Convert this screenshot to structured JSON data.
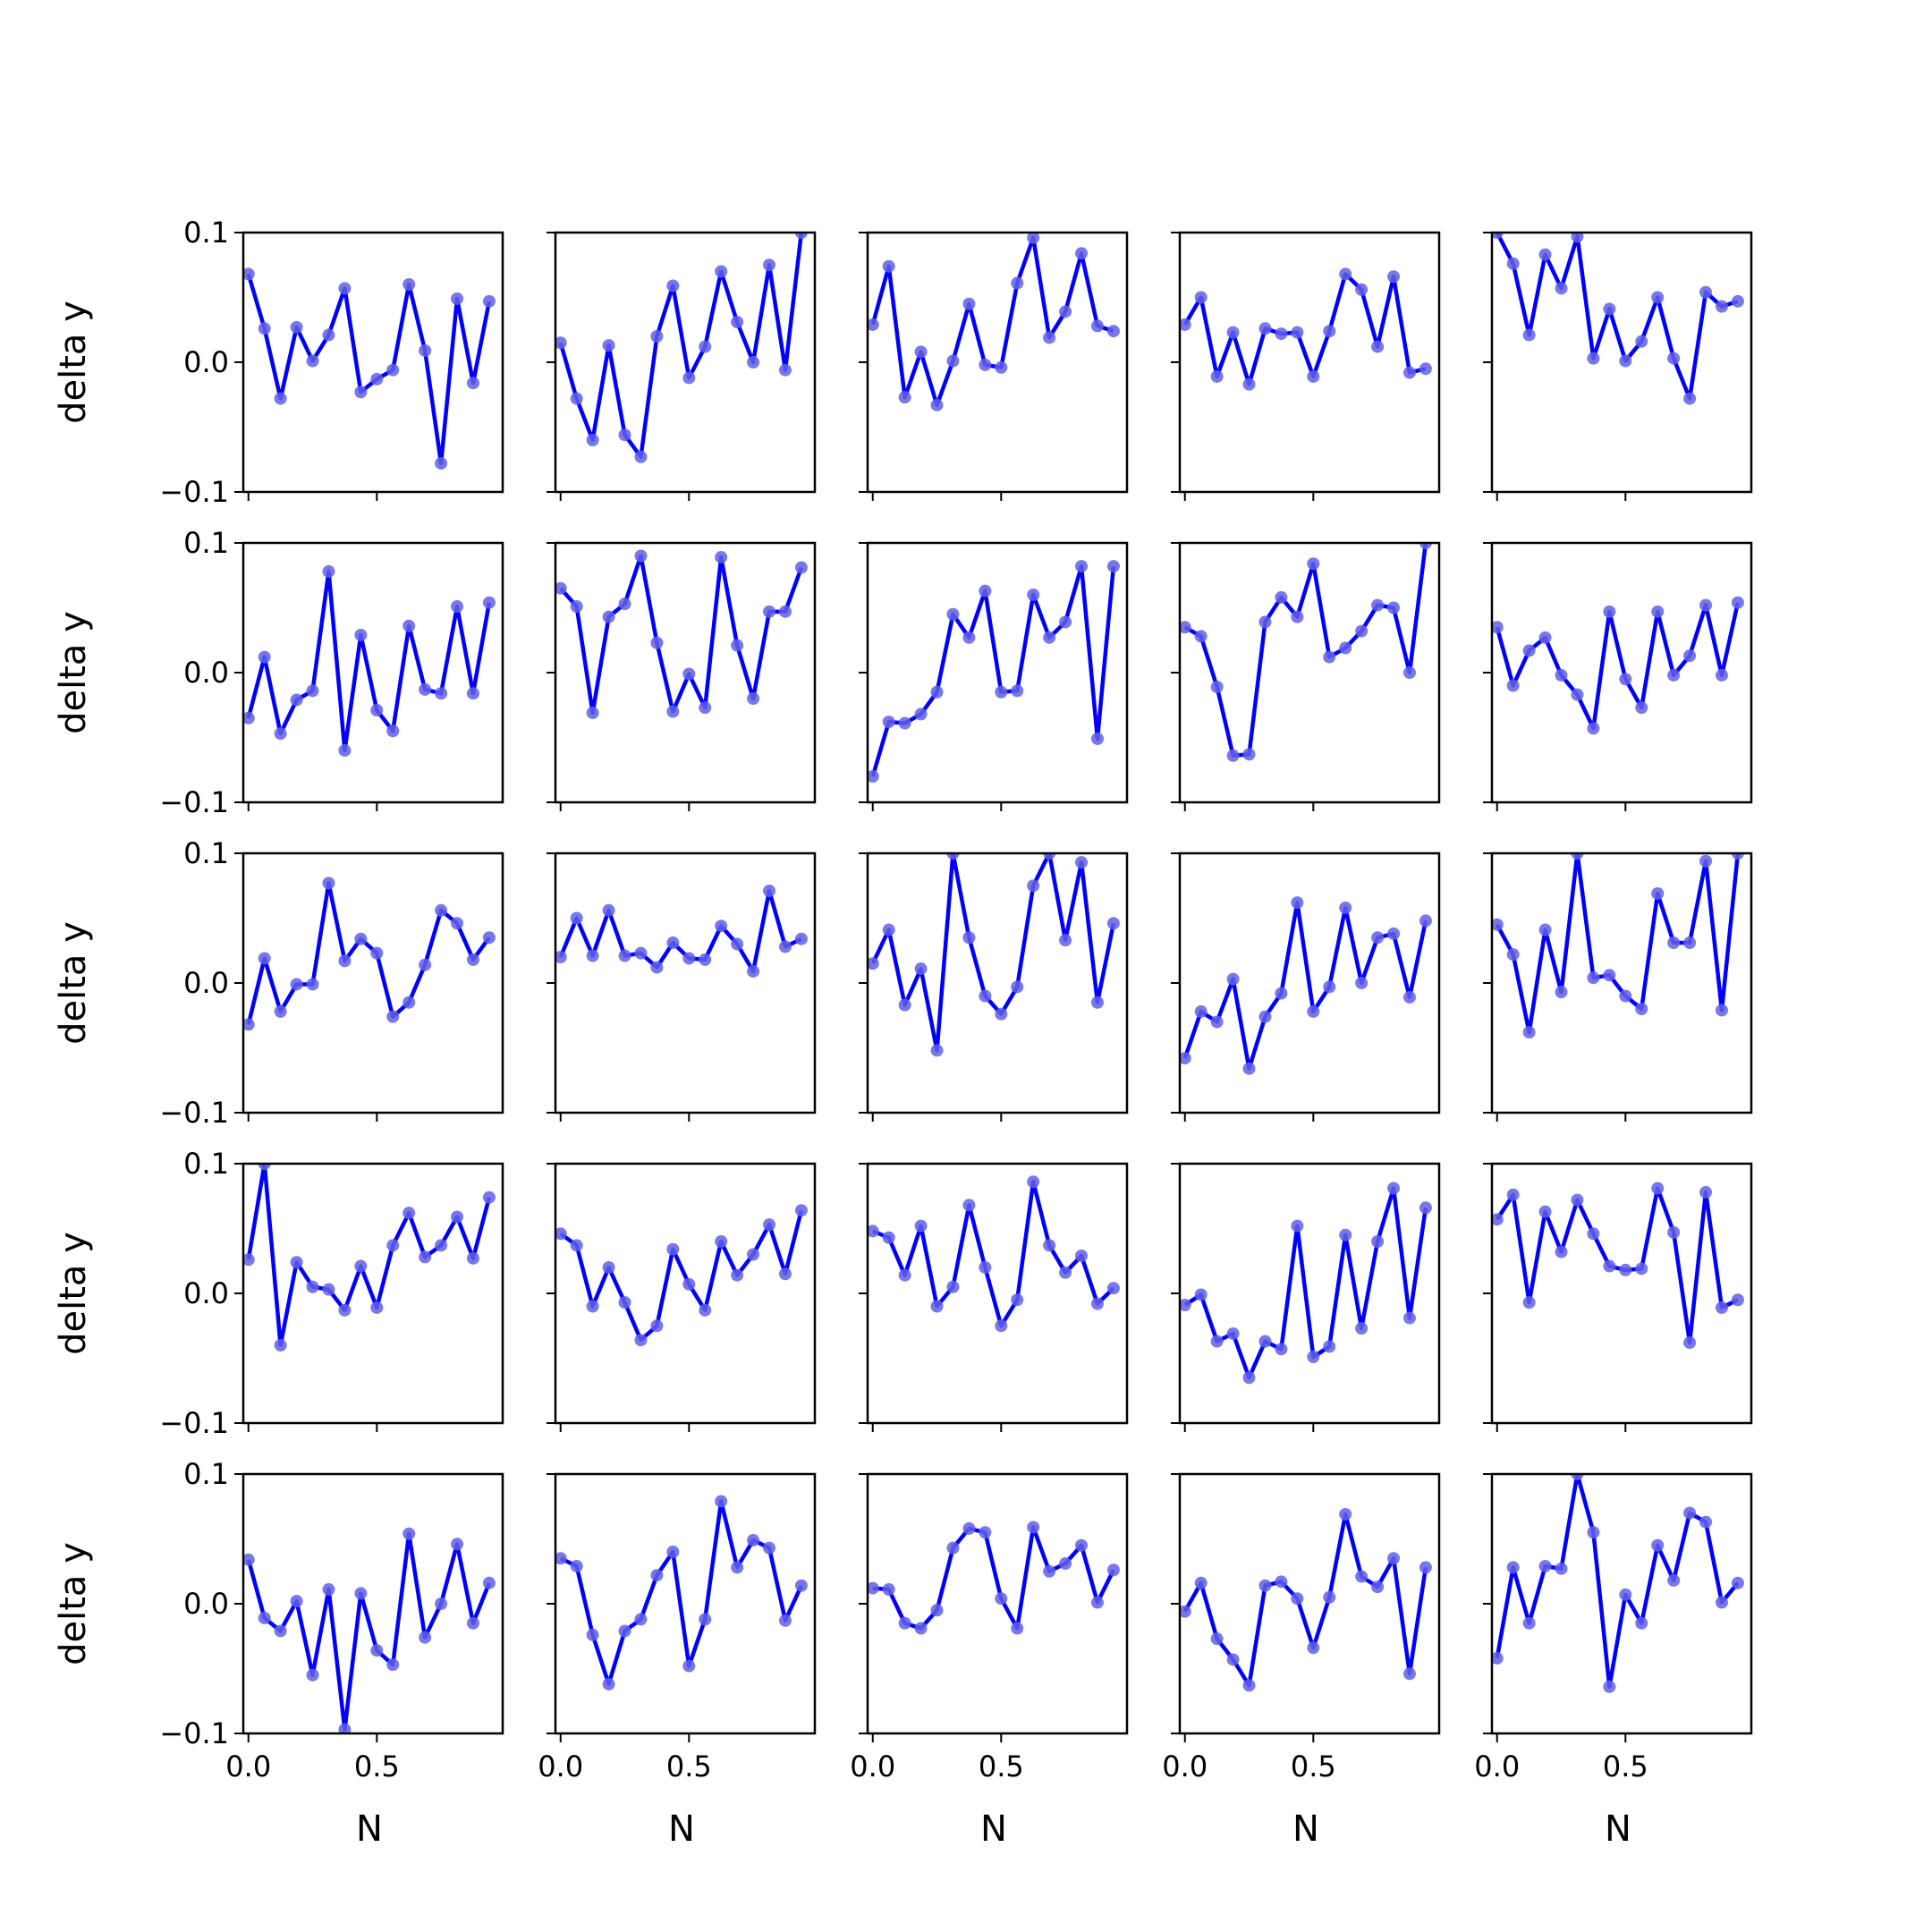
{
  "chart_data": {
    "type": "line",
    "layout": "5x5 grid of small-multiple line plots with markers",
    "xlabel": "N",
    "ylabel": "delta y",
    "xlim": [
      -0.02,
      0.99
    ],
    "ylim": [
      -0.1,
      0.1
    ],
    "x_ticks": [
      0.0,
      0.5
    ],
    "x_tick_labels": [
      "0.0",
      "0.5"
    ],
    "y_ticks": [
      -0.1,
      0.0,
      0.1
    ],
    "y_tick_labels": [
      "−0.1",
      "0.0",
      "0.1"
    ],
    "x": [
      0.0,
      0.0625,
      0.125,
      0.1875,
      0.25,
      0.3125,
      0.375,
      0.4375,
      0.5,
      0.5625,
      0.625,
      0.6875,
      0.75,
      0.8125,
      0.875,
      0.9375
    ],
    "line_color": "#0000ff",
    "marker_color": "#6060e8",
    "grid": false,
    "panels": [
      [
        0.068,
        0.026,
        -0.028,
        0.027,
        0.001,
        0.021,
        0.057,
        -0.023,
        -0.013,
        -0.006,
        0.06,
        0.009,
        -0.078,
        0.049,
        -0.016,
        0.047
      ],
      [
        0.015,
        -0.028,
        -0.06,
        0.013,
        -0.056,
        -0.073,
        0.02,
        0.059,
        -0.012,
        0.012,
        0.07,
        0.031,
        0.0,
        0.075,
        -0.006,
        0.1
      ],
      [
        0.029,
        0.074,
        -0.027,
        0.008,
        -0.033,
        0.001,
        0.045,
        -0.002,
        -0.004,
        0.061,
        0.096,
        0.019,
        0.039,
        0.084,
        0.028,
        0.024
      ],
      [
        0.029,
        0.05,
        -0.011,
        0.023,
        -0.017,
        0.026,
        0.022,
        0.023,
        -0.011,
        0.024,
        0.068,
        0.056,
        0.012,
        0.066,
        -0.008,
        -0.005
      ],
      [
        0.1,
        0.076,
        0.021,
        0.083,
        0.057,
        0.097,
        0.003,
        0.041,
        0.001,
        0.016,
        0.05,
        0.003,
        -0.028,
        0.054,
        0.043,
        0.047
      ],
      [
        -0.035,
        0.012,
        -0.047,
        -0.021,
        -0.014,
        0.078,
        -0.06,
        0.029,
        -0.029,
        -0.045,
        0.036,
        -0.013,
        -0.016,
        0.051,
        -0.016,
        0.054
      ],
      [
        0.065,
        0.051,
        -0.031,
        0.043,
        0.053,
        0.09,
        0.023,
        -0.03,
        -0.001,
        -0.027,
        0.089,
        0.021,
        -0.02,
        0.047,
        0.047,
        0.081
      ],
      [
        -0.08,
        -0.038,
        -0.039,
        -0.032,
        -0.015,
        0.045,
        0.027,
        0.063,
        -0.015,
        -0.014,
        0.06,
        0.027,
        0.039,
        0.082,
        -0.051,
        0.082
      ],
      [
        0.035,
        0.028,
        -0.011,
        -0.064,
        -0.063,
        0.039,
        0.058,
        0.043,
        0.084,
        0.012,
        0.019,
        0.032,
        0.052,
        0.05,
        0.0,
        0.1
      ],
      [
        0.035,
        -0.01,
        0.017,
        0.027,
        -0.002,
        -0.017,
        -0.043,
        0.047,
        -0.005,
        -0.027,
        0.047,
        -0.002,
        0.013,
        0.052,
        -0.002,
        0.054
      ],
      [
        -0.032,
        0.019,
        -0.022,
        -0.001,
        -0.001,
        0.077,
        0.017,
        0.034,
        0.023,
        -0.026,
        -0.015,
        0.014,
        0.056,
        0.046,
        0.018,
        0.035
      ],
      [
        0.02,
        0.05,
        0.021,
        0.056,
        0.021,
        0.023,
        0.012,
        0.031,
        0.019,
        0.018,
        0.044,
        0.03,
        0.009,
        0.071,
        0.028,
        0.034
      ],
      [
        0.015,
        0.041,
        -0.017,
        0.011,
        -0.052,
        0.1,
        0.035,
        -0.01,
        -0.024,
        -0.003,
        0.075,
        0.1,
        0.033,
        0.093,
        -0.015,
        0.046
      ],
      [
        -0.058,
        -0.022,
        -0.03,
        0.003,
        -0.066,
        -0.026,
        -0.008,
        0.062,
        -0.022,
        -0.003,
        0.058,
        0.0,
        0.035,
        0.038,
        -0.011,
        0.048
      ],
      [
        0.045,
        0.022,
        -0.038,
        0.041,
        -0.007,
        0.1,
        0.004,
        0.006,
        -0.01,
        -0.02,
        0.069,
        0.031,
        0.031,
        0.094,
        -0.021,
        0.1
      ],
      [
        0.026,
        0.1,
        -0.04,
        0.024,
        0.005,
        0.003,
        -0.013,
        0.021,
        -0.011,
        0.037,
        0.062,
        0.028,
        0.037,
        0.059,
        0.027,
        0.074
      ],
      [
        0.046,
        0.037,
        -0.01,
        0.02,
        -0.007,
        -0.036,
        -0.025,
        0.034,
        0.007,
        -0.013,
        0.04,
        0.014,
        0.03,
        0.053,
        0.015,
        0.064
      ],
      [
        0.048,
        0.043,
        0.014,
        0.052,
        -0.01,
        0.005,
        0.068,
        0.02,
        -0.025,
        -0.005,
        0.086,
        0.037,
        0.016,
        0.029,
        -0.008,
        0.004
      ],
      [
        -0.009,
        -0.001,
        -0.037,
        -0.031,
        -0.065,
        -0.037,
        -0.043,
        0.052,
        -0.049,
        -0.041,
        0.045,
        -0.027,
        0.04,
        0.081,
        -0.019,
        0.066
      ],
      [
        0.057,
        0.076,
        -0.007,
        0.063,
        0.032,
        0.072,
        0.046,
        0.021,
        0.018,
        0.019,
        0.081,
        0.047,
        -0.038,
        0.078,
        -0.011,
        -0.005
      ],
      [
        0.034,
        -0.011,
        -0.021,
        0.002,
        -0.055,
        0.011,
        -0.097,
        0.008,
        -0.036,
        -0.047,
        0.054,
        -0.026,
        0.0,
        0.046,
        -0.015,
        0.016
      ],
      [
        0.035,
        0.029,
        -0.024,
        -0.062,
        -0.021,
        -0.012,
        0.022,
        0.04,
        -0.048,
        -0.012,
        0.079,
        0.028,
        0.049,
        0.043,
        -0.013,
        0.014
      ],
      [
        0.012,
        0.011,
        -0.015,
        -0.019,
        -0.005,
        0.043,
        0.058,
        0.055,
        0.004,
        -0.019,
        0.059,
        0.025,
        0.031,
        0.045,
        0.001,
        0.026
      ],
      [
        -0.006,
        0.016,
        -0.027,
        -0.043,
        -0.063,
        0.014,
        0.017,
        0.004,
        -0.034,
        0.005,
        0.069,
        0.021,
        0.013,
        0.035,
        -0.054,
        0.028
      ],
      [
        -0.042,
        0.028,
        -0.015,
        0.029,
        0.027,
        0.1,
        0.055,
        -0.064,
        0.007,
        -0.015,
        0.045,
        0.018,
        0.07,
        0.063,
        0.001,
        0.016
      ]
    ]
  }
}
